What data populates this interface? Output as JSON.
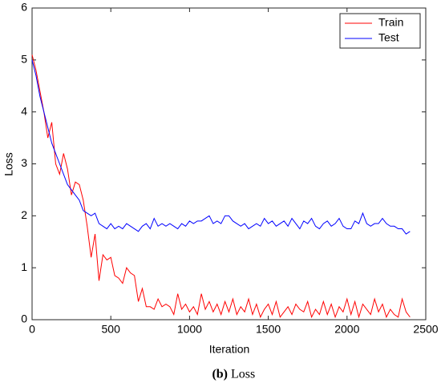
{
  "chart_data": {
    "type": "line",
    "xlabel": "Iteration",
    "ylabel": "Loss",
    "caption_label": "(b)",
    "caption": "Loss",
    "x": [
      0,
      25,
      50,
      75,
      100,
      125,
      150,
      175,
      200,
      225,
      250,
      275,
      300,
      325,
      350,
      375,
      400,
      425,
      450,
      475,
      500,
      525,
      550,
      575,
      600,
      625,
      650,
      675,
      700,
      725,
      750,
      775,
      800,
      825,
      850,
      875,
      900,
      925,
      950,
      975,
      1000,
      1025,
      1050,
      1075,
      1100,
      1125,
      1150,
      1175,
      1200,
      1225,
      1250,
      1275,
      1300,
      1325,
      1350,
      1375,
      1400,
      1425,
      1450,
      1475,
      1500,
      1525,
      1550,
      1575,
      1600,
      1625,
      1650,
      1675,
      1700,
      1725,
      1750,
      1775,
      1800,
      1825,
      1850,
      1875,
      1900,
      1925,
      1950,
      1975,
      2000,
      2025,
      2050,
      2075,
      2100,
      2125,
      2150,
      2175,
      2200,
      2225,
      2250,
      2275,
      2300,
      2325,
      2350,
      2375,
      2400
    ],
    "series": [
      {
        "name": "Train",
        "color": "#ff0000",
        "values": [
          5.1,
          4.8,
          4.4,
          4.0,
          3.5,
          3.8,
          3.0,
          2.8,
          3.2,
          2.9,
          2.4,
          2.65,
          2.6,
          2.3,
          1.8,
          1.2,
          1.65,
          0.75,
          1.25,
          1.15,
          1.2,
          0.85,
          0.8,
          0.7,
          1.0,
          0.9,
          0.85,
          0.35,
          0.6,
          0.25,
          0.25,
          0.2,
          0.4,
          0.25,
          0.3,
          0.25,
          0.1,
          0.5,
          0.2,
          0.3,
          0.15,
          0.25,
          0.1,
          0.5,
          0.2,
          0.35,
          0.15,
          0.3,
          0.1,
          0.35,
          0.15,
          0.4,
          0.1,
          0.25,
          0.15,
          0.4,
          0.1,
          0.3,
          0.05,
          0.2,
          0.3,
          0.1,
          0.35,
          0.05,
          0.15,
          0.25,
          0.1,
          0.3,
          0.2,
          0.15,
          0.35,
          0.05,
          0.2,
          0.1,
          0.35,
          0.1,
          0.3,
          0.05,
          0.25,
          0.15,
          0.4,
          0.1,
          0.35,
          0.05,
          0.3,
          0.2,
          0.1,
          0.4,
          0.15,
          0.3,
          0.05,
          0.2,
          0.1,
          0.05,
          0.4,
          0.15,
          0.05
        ]
      },
      {
        "name": "Test",
        "color": "#0000ff",
        "values": [
          5.0,
          4.7,
          4.3,
          4.0,
          3.7,
          3.4,
          3.2,
          3.0,
          2.8,
          2.6,
          2.5,
          2.4,
          2.3,
          2.1,
          2.05,
          2.0,
          2.05,
          1.85,
          1.8,
          1.75,
          1.85,
          1.75,
          1.8,
          1.75,
          1.85,
          1.8,
          1.75,
          1.7,
          1.8,
          1.85,
          1.75,
          1.95,
          1.8,
          1.85,
          1.8,
          1.85,
          1.8,
          1.75,
          1.85,
          1.8,
          1.9,
          1.85,
          1.9,
          1.9,
          1.95,
          2.0,
          1.85,
          1.9,
          1.85,
          2.0,
          2.0,
          1.9,
          1.85,
          1.8,
          1.85,
          1.75,
          1.8,
          1.85,
          1.8,
          1.95,
          1.85,
          1.9,
          1.8,
          1.85,
          1.9,
          1.8,
          1.95,
          1.85,
          1.75,
          1.9,
          1.85,
          1.95,
          1.8,
          1.75,
          1.85,
          1.9,
          1.8,
          1.85,
          1.95,
          1.8,
          1.75,
          1.75,
          1.9,
          1.85,
          2.05,
          1.85,
          1.8,
          1.85,
          1.85,
          1.95,
          1.85,
          1.8,
          1.8,
          1.75,
          1.75,
          1.65,
          1.7
        ]
      }
    ],
    "xlim": [
      0,
      2500
    ],
    "xticks": [
      0,
      500,
      1000,
      1500,
      2000,
      2500
    ],
    "ylim": [
      0,
      6
    ],
    "yticks": [
      0,
      1,
      2,
      3,
      4,
      5,
      6
    ],
    "legend": "upper right",
    "grid": false
  }
}
